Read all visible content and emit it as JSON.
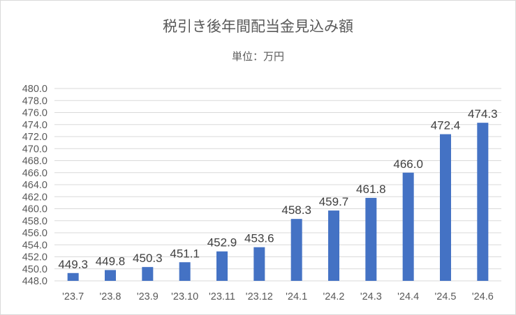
{
  "chart_data": {
    "type": "bar",
    "title": "税引き後年間配当金見込み額",
    "subtitle": "単位：万円",
    "categories": [
      "'23.7",
      "'23.8",
      "'23.9",
      "'23.10",
      "'23.11",
      "'23.12",
      "'24.1",
      "'24.2",
      "'24.3",
      "'24.4",
      "'24.5",
      "'24.6"
    ],
    "series": [
      {
        "values": [
          449.3,
          449.8,
          450.3,
          451.1,
          452.9,
          453.6,
          458.3,
          459.7,
          461.8,
          466.0,
          472.4,
          474.3
        ]
      }
    ],
    "data_labels": [
      "449.3",
      "449.8",
      "450.3",
      "451.1",
      "452.9",
      "453.6",
      "458.3",
      "459.7",
      "461.8",
      "466.0",
      "472.4",
      "474.3"
    ],
    "ylim": [
      448,
      480
    ],
    "yticks": [
      "448.0",
      "450.0",
      "452.0",
      "454.0",
      "456.0",
      "458.0",
      "460.0",
      "462.0",
      "464.0",
      "466.0",
      "468.0",
      "470.0",
      "472.0",
      "474.0",
      "476.0",
      "478.0",
      "480.0"
    ],
    "grid": true,
    "legend": "none",
    "bar_color": "#4472c4"
  }
}
